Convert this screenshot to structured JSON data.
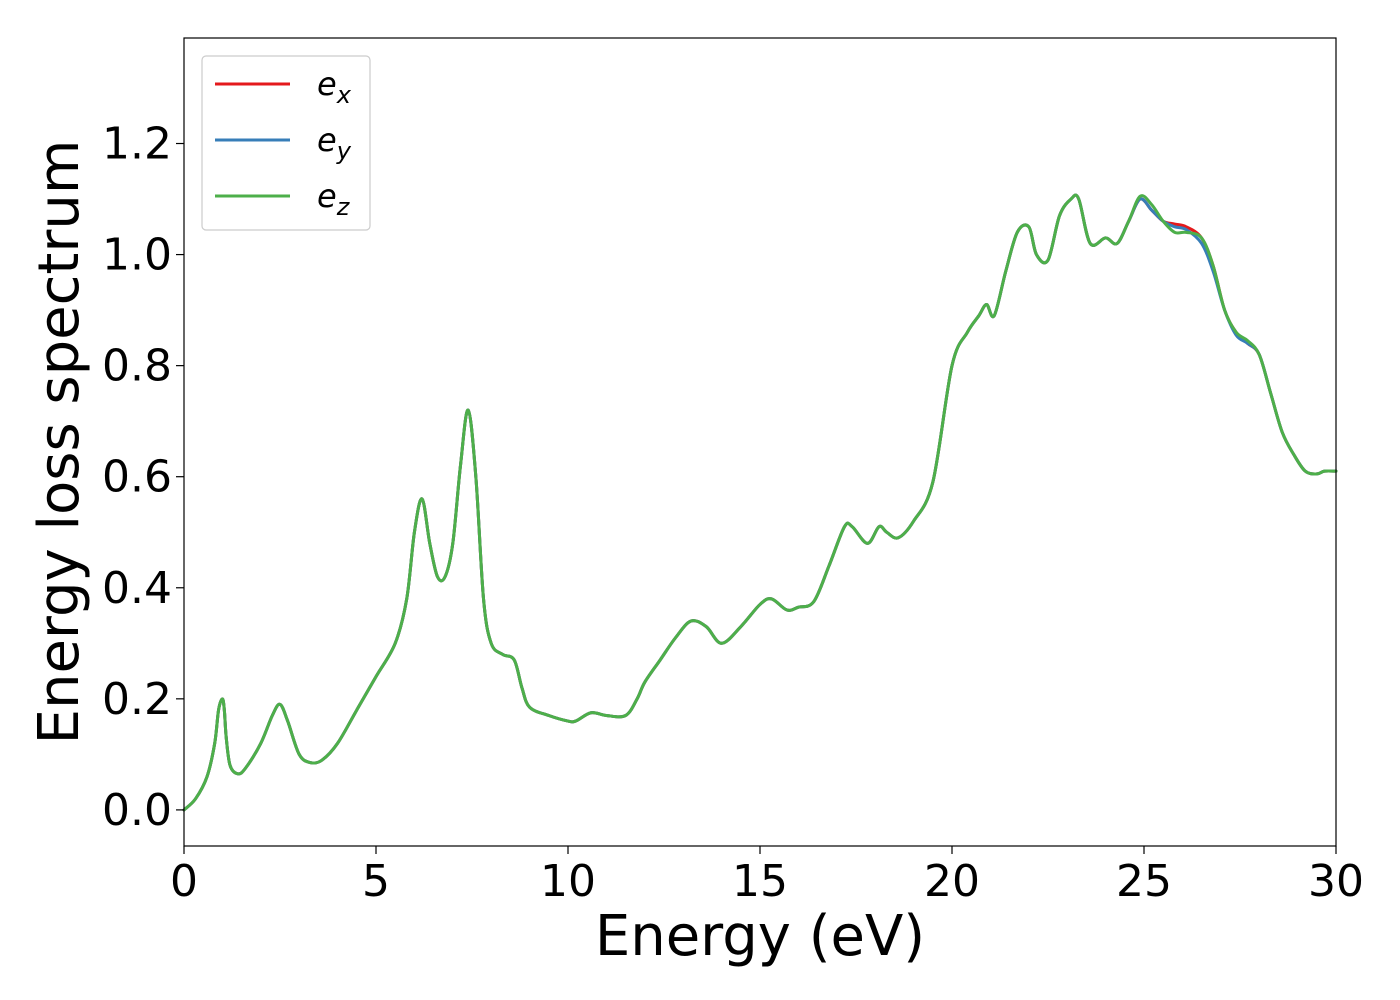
{
  "chart_data": {
    "type": "line",
    "xlabel": "Energy (eV)",
    "ylabel": "Energy loss spectrum",
    "xlim": [
      0,
      30
    ],
    "ylim": [
      -0.065,
      1.39
    ],
    "xticks": [
      0,
      5,
      10,
      15,
      20,
      25,
      30
    ],
    "xtick_labels": [
      "0",
      "5",
      "10",
      "15",
      "20",
      "25",
      "30"
    ],
    "yticks": [
      0.0,
      0.2,
      0.4,
      0.6,
      0.8,
      1.0,
      1.2
    ],
    "ytick_labels": [
      "0.0",
      "0.2",
      "0.4",
      "0.6",
      "0.8",
      "1.0",
      "1.2"
    ],
    "grid": false,
    "legend_position": "top-left",
    "series": [
      {
        "name": "e_x",
        "label_base": "e",
        "label_sub": "x",
        "color": "#e41a1c",
        "x": [
          0,
          0.3,
          0.6,
          0.8,
          0.9,
          1.0,
          1.05,
          1.1,
          1.2,
          1.4,
          1.6,
          2.0,
          2.3,
          2.5,
          2.7,
          3.0,
          3.3,
          3.6,
          4.0,
          4.5,
          5.0,
          5.5,
          5.8,
          6.0,
          6.2,
          6.4,
          6.6,
          6.8,
          7.0,
          7.2,
          7.4,
          7.6,
          7.8,
          8.0,
          8.3,
          8.6,
          8.8,
          9.0,
          9.5,
          10.0,
          10.2,
          10.6,
          11.0,
          11.5,
          11.8,
          12.0,
          12.4,
          12.8,
          13.2,
          13.6,
          14.0,
          14.5,
          15.0,
          15.3,
          15.7,
          16.0,
          16.4,
          16.8,
          17.2,
          17.4,
          17.8,
          18.1,
          18.3,
          18.6,
          19.0,
          19.5,
          20.0,
          20.4,
          20.7,
          20.9,
          21.1,
          21.4,
          21.7,
          22.0,
          22.2,
          22.5,
          22.8,
          23.1,
          23.3,
          23.6,
          24.0,
          24.3,
          24.6,
          24.9,
          25.2,
          25.5,
          25.8,
          26.1,
          26.5,
          26.8,
          27.1,
          27.4,
          27.7,
          28.0,
          28.3,
          28.6,
          28.9,
          29.2,
          29.5,
          29.7,
          30.0
        ],
        "y": [
          0.0,
          0.02,
          0.06,
          0.12,
          0.18,
          0.2,
          0.18,
          0.13,
          0.08,
          0.065,
          0.075,
          0.12,
          0.17,
          0.19,
          0.16,
          0.1,
          0.085,
          0.09,
          0.12,
          0.18,
          0.24,
          0.3,
          0.38,
          0.5,
          0.56,
          0.48,
          0.42,
          0.42,
          0.48,
          0.62,
          0.72,
          0.6,
          0.38,
          0.3,
          0.28,
          0.27,
          0.22,
          0.185,
          0.17,
          0.16,
          0.16,
          0.175,
          0.17,
          0.17,
          0.2,
          0.23,
          0.27,
          0.31,
          0.34,
          0.33,
          0.3,
          0.33,
          0.37,
          0.38,
          0.36,
          0.365,
          0.375,
          0.44,
          0.51,
          0.51,
          0.48,
          0.51,
          0.5,
          0.49,
          0.52,
          0.59,
          0.8,
          0.86,
          0.89,
          0.91,
          0.89,
          0.97,
          1.04,
          1.05,
          1.0,
          0.99,
          1.07,
          1.1,
          1.1,
          1.02,
          1.03,
          1.02,
          1.06,
          1.1,
          1.08,
          1.06,
          1.055,
          1.05,
          1.03,
          0.98,
          0.9,
          0.86,
          0.84,
          0.82,
          0.75,
          0.68,
          0.64,
          0.61,
          0.605,
          0.61,
          0.61
        ]
      },
      {
        "name": "e_y",
        "label_base": "e",
        "label_sub": "y",
        "color": "#377eb8",
        "x": [
          0,
          0.3,
          0.6,
          0.8,
          0.9,
          1.0,
          1.05,
          1.1,
          1.2,
          1.4,
          1.6,
          2.0,
          2.3,
          2.5,
          2.7,
          3.0,
          3.3,
          3.6,
          4.0,
          4.5,
          5.0,
          5.5,
          5.8,
          6.0,
          6.2,
          6.4,
          6.6,
          6.8,
          7.0,
          7.2,
          7.4,
          7.6,
          7.8,
          8.0,
          8.3,
          8.6,
          8.8,
          9.0,
          9.5,
          10.0,
          10.2,
          10.6,
          11.0,
          11.5,
          11.8,
          12.0,
          12.4,
          12.8,
          13.2,
          13.6,
          14.0,
          14.5,
          15.0,
          15.3,
          15.7,
          16.0,
          16.4,
          16.8,
          17.2,
          17.4,
          17.8,
          18.1,
          18.3,
          18.6,
          19.0,
          19.5,
          20.0,
          20.4,
          20.7,
          20.9,
          21.1,
          21.4,
          21.7,
          22.0,
          22.2,
          22.5,
          22.8,
          23.1,
          23.3,
          23.6,
          24.0,
          24.3,
          24.6,
          24.9,
          25.2,
          25.5,
          25.8,
          26.1,
          26.5,
          26.8,
          27.1,
          27.4,
          27.7,
          28.0,
          28.3,
          28.6,
          28.9,
          29.2,
          29.5,
          29.7,
          30.0
        ],
        "y": [
          0.0,
          0.02,
          0.06,
          0.12,
          0.18,
          0.2,
          0.18,
          0.13,
          0.08,
          0.065,
          0.075,
          0.12,
          0.17,
          0.19,
          0.16,
          0.1,
          0.085,
          0.09,
          0.12,
          0.18,
          0.24,
          0.3,
          0.38,
          0.5,
          0.56,
          0.48,
          0.42,
          0.42,
          0.48,
          0.62,
          0.72,
          0.6,
          0.38,
          0.3,
          0.28,
          0.27,
          0.22,
          0.185,
          0.17,
          0.16,
          0.16,
          0.175,
          0.17,
          0.17,
          0.2,
          0.23,
          0.27,
          0.31,
          0.34,
          0.33,
          0.3,
          0.33,
          0.37,
          0.38,
          0.36,
          0.365,
          0.375,
          0.44,
          0.51,
          0.51,
          0.48,
          0.51,
          0.5,
          0.49,
          0.52,
          0.59,
          0.8,
          0.86,
          0.89,
          0.91,
          0.89,
          0.97,
          1.04,
          1.05,
          1.0,
          0.99,
          1.07,
          1.1,
          1.1,
          1.02,
          1.03,
          1.02,
          1.06,
          1.1,
          1.08,
          1.06,
          1.05,
          1.045,
          1.02,
          0.97,
          0.9,
          0.855,
          0.84,
          0.82,
          0.75,
          0.68,
          0.64,
          0.61,
          0.605,
          0.61,
          0.61
        ]
      },
      {
        "name": "e_z",
        "label_base": "e",
        "label_sub": "z",
        "color": "#4daf4a",
        "x": [
          0,
          0.3,
          0.6,
          0.8,
          0.9,
          1.0,
          1.05,
          1.1,
          1.2,
          1.4,
          1.6,
          2.0,
          2.3,
          2.5,
          2.7,
          3.0,
          3.3,
          3.6,
          4.0,
          4.5,
          5.0,
          5.5,
          5.8,
          6.0,
          6.2,
          6.4,
          6.6,
          6.8,
          7.0,
          7.2,
          7.4,
          7.6,
          7.8,
          8.0,
          8.3,
          8.6,
          8.8,
          9.0,
          9.5,
          10.0,
          10.2,
          10.6,
          11.0,
          11.5,
          11.8,
          12.0,
          12.4,
          12.8,
          13.2,
          13.6,
          14.0,
          14.5,
          15.0,
          15.3,
          15.7,
          16.0,
          16.4,
          16.8,
          17.2,
          17.4,
          17.8,
          18.1,
          18.3,
          18.6,
          19.0,
          19.5,
          20.0,
          20.4,
          20.7,
          20.9,
          21.1,
          21.4,
          21.7,
          22.0,
          22.2,
          22.5,
          22.8,
          23.1,
          23.3,
          23.6,
          24.0,
          24.3,
          24.6,
          24.9,
          25.2,
          25.5,
          25.8,
          26.1,
          26.5,
          26.8,
          27.1,
          27.4,
          27.7,
          28.0,
          28.3,
          28.6,
          28.9,
          29.2,
          29.5,
          29.7,
          30.0
        ],
        "y": [
          0.0,
          0.02,
          0.06,
          0.12,
          0.18,
          0.2,
          0.18,
          0.13,
          0.08,
          0.065,
          0.075,
          0.12,
          0.17,
          0.19,
          0.16,
          0.1,
          0.085,
          0.09,
          0.12,
          0.18,
          0.24,
          0.3,
          0.38,
          0.5,
          0.56,
          0.48,
          0.42,
          0.42,
          0.48,
          0.62,
          0.72,
          0.6,
          0.38,
          0.3,
          0.28,
          0.27,
          0.22,
          0.185,
          0.17,
          0.16,
          0.16,
          0.175,
          0.17,
          0.17,
          0.2,
          0.23,
          0.27,
          0.31,
          0.34,
          0.33,
          0.3,
          0.33,
          0.37,
          0.38,
          0.36,
          0.365,
          0.375,
          0.44,
          0.51,
          0.51,
          0.48,
          0.51,
          0.5,
          0.49,
          0.52,
          0.59,
          0.8,
          0.86,
          0.89,
          0.91,
          0.89,
          0.97,
          1.04,
          1.05,
          1.0,
          0.99,
          1.07,
          1.1,
          1.1,
          1.02,
          1.03,
          1.02,
          1.06,
          1.105,
          1.09,
          1.06,
          1.04,
          1.04,
          1.03,
          0.98,
          0.9,
          0.86,
          0.845,
          0.82,
          0.75,
          0.68,
          0.64,
          0.61,
          0.605,
          0.61,
          0.61
        ]
      }
    ]
  }
}
